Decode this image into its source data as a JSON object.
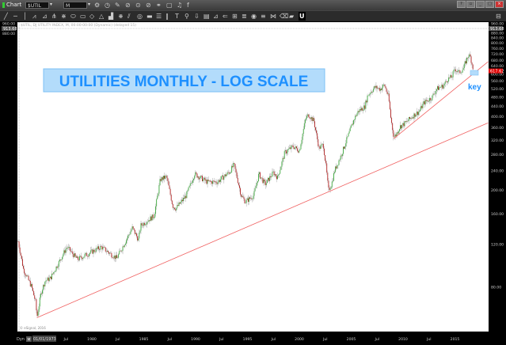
{
  "window": {
    "title": "Chart",
    "symbol": "$UTIL",
    "interval": "M",
    "controls": [
      "?",
      "▫",
      "_",
      "□",
      "×"
    ]
  },
  "toolbar_row1_icons": [
    {
      "name": "settings-icon",
      "glyph": "⚙"
    },
    {
      "name": "clock-icon",
      "glyph": "◷"
    },
    {
      "name": "pencil-icon",
      "glyph": "✎"
    },
    {
      "name": "cycle-icon",
      "glyph": "⊘"
    },
    {
      "name": "target-icon",
      "glyph": "⊙"
    },
    {
      "name": "no-icon",
      "glyph": "⊘"
    },
    {
      "name": "link-icon",
      "glyph": "⚭"
    },
    {
      "name": "square-icon",
      "glyph": "▢"
    },
    {
      "name": "twitter-icon",
      "glyph": "♫"
    },
    {
      "name": "facebook-icon",
      "glyph": "f"
    }
  ],
  "toolbar_row2_icons": [
    {
      "name": "trendline-tool-icon",
      "glyph": "╱"
    },
    {
      "name": "horizontal-line-tool-icon",
      "glyph": "─"
    },
    {
      "name": "vertical-line-tool-icon",
      "glyph": "│"
    },
    {
      "name": "polyline-tool-icon",
      "glyph": "⩘"
    },
    {
      "name": "fibonacci-tool-icon",
      "glyph": "⊿"
    },
    {
      "name": "pitchfork-tool-icon",
      "glyph": "⋔"
    },
    {
      "name": "gann-fan-tool-icon",
      "glyph": "⋇"
    },
    {
      "name": "ellipse-tool-icon",
      "glyph": "⬭"
    },
    {
      "name": "rectangle-tool-icon",
      "glyph": "▭"
    },
    {
      "name": "diamond-tool-icon",
      "glyph": "◇"
    },
    {
      "name": "triangle-tool-icon",
      "glyph": "△"
    },
    {
      "name": "volume-tool-icon",
      "glyph": "▟"
    },
    {
      "name": "ruler-tool-icon",
      "glyph": "⧻"
    },
    {
      "name": "parallel-channel-tool-icon",
      "glyph": "⫽"
    },
    {
      "name": "circle-tool-icon",
      "glyph": "◎"
    },
    {
      "name": "band-tool-icon",
      "glyph": "▬"
    },
    {
      "name": "lines-tool-icon",
      "glyph": "☰"
    },
    {
      "name": "bars-tool-icon",
      "glyph": "‖"
    },
    {
      "name": "text-tool-icon",
      "glyph": "T"
    },
    {
      "name": "marker-tool-icon",
      "glyph": "⚲"
    },
    {
      "name": "arrow-tool-icon",
      "glyph": "⇩"
    },
    {
      "name": "fill-tool-icon",
      "glyph": "▤"
    },
    {
      "name": "chart-tool-icon",
      "glyph": "⊿"
    },
    {
      "name": "back-tool-icon",
      "glyph": "⇐"
    },
    {
      "name": "grid-tool-icon",
      "glyph": "⊞"
    },
    {
      "name": "list-tool-icon",
      "glyph": "≣"
    },
    {
      "name": "eye-tool-icon",
      "glyph": "◉"
    },
    {
      "name": "layers-tool-icon",
      "glyph": "≡"
    },
    {
      "name": "zigzag-tool-icon",
      "glyph": "⋈"
    },
    {
      "name": "eraser-tool-icon",
      "glyph": "⌫"
    },
    {
      "name": "comment-tool-icon",
      "glyph": "▰"
    },
    {
      "name": "u-tool-icon",
      "glyph": "U"
    },
    {
      "name": "panel-toggle-icon",
      "glyph": "⊟"
    }
  ],
  "chart_data": {
    "type": "candlestick",
    "info_line": "$UTIL, DJ UTILITY INDEX, M, 00:00-00:00 (Dynamic) (delayed 15)",
    "annotation_title": "UTILITIES MONTHLY - LOG SCALE",
    "annotation_key": "key",
    "copyright": "© eSignal, 2016",
    "y_scale": "log",
    "ylim": [
      55,
      960
    ],
    "xlim": [
      1972.8,
      2018.2
    ],
    "y_ticks": [
      "960.00",
      "880.00",
      "840.00",
      "800.00",
      "760.00",
      "720.00",
      "680.00",
      "640.00",
      "600.00",
      "560.00",
      "520.00",
      "480.00",
      "440.00",
      "400.00",
      "360.00",
      "320.00",
      "280.00",
      "240.00",
      "200.00",
      "160.00",
      "120.00",
      "80.00"
    ],
    "crosshair_value": "913.68",
    "last_price": "617.62",
    "last_price_color": "#e00000",
    "x_ticks": [
      {
        "label": "Jul",
        "year": 1977.5
      },
      {
        "label": "1980",
        "year": 1980
      },
      {
        "label": "Jul",
        "year": 1982.5
      },
      {
        "label": "1985",
        "year": 1985
      },
      {
        "label": "Jul",
        "year": 1987.5
      },
      {
        "label": "1990",
        "year": 1990
      },
      {
        "label": "Jul",
        "year": 1992.5
      },
      {
        "label": "1995",
        "year": 1995
      },
      {
        "label": "Jul",
        "year": 1997.5
      },
      {
        "label": "2000",
        "year": 2000
      },
      {
        "label": "Jul",
        "year": 2002.5
      },
      {
        "label": "2005",
        "year": 2005
      },
      {
        "label": "Jul",
        "year": 2007.5
      },
      {
        "label": "2010",
        "year": 2010
      },
      {
        "label": "Jul",
        "year": 2012.5
      },
      {
        "label": "2015",
        "year": 2015
      }
    ],
    "x_axis_mode": "Dyn",
    "x_axis_interval_button": "M",
    "x_axis_start_date": "01/01/1973",
    "up_color": "#3aa83a",
    "down_color": "#b02020",
    "trendline_color": "#f06060",
    "annotation_color": "#1e90ff",
    "series": [
      {
        "values": [
          [
            1972.9,
            123
          ],
          [
            1973.4,
            95
          ],
          [
            1974.2,
            80
          ],
          [
            1974.6,
            69
          ],
          [
            1974.7,
            60
          ],
          [
            1975.1,
            76
          ],
          [
            1975.5,
            85
          ],
          [
            1976.0,
            87
          ],
          [
            1977.6,
            117
          ],
          [
            1978.6,
            104
          ],
          [
            1980.9,
            117
          ],
          [
            1982.4,
            105
          ],
          [
            1983.9,
            140
          ],
          [
            1984.5,
            125
          ],
          [
            1984.7,
            143
          ],
          [
            1986.0,
            157
          ],
          [
            1986.6,
            221
          ],
          [
            1987.2,
            227
          ],
          [
            1987.8,
            172
          ],
          [
            1988.1,
            168
          ],
          [
            1989.1,
            190
          ],
          [
            1989.9,
            233
          ],
          [
            1991.1,
            216
          ],
          [
            1992.1,
            216
          ],
          [
            1993.3,
            238
          ],
          [
            1993.7,
            254
          ],
          [
            1994.4,
            190
          ],
          [
            1994.8,
            179
          ],
          [
            1995.6,
            190
          ],
          [
            1996.1,
            233
          ],
          [
            1996.7,
            211
          ],
          [
            1997.5,
            236
          ],
          [
            1997.9,
            225
          ],
          [
            1998.6,
            285
          ],
          [
            1999.4,
            302
          ],
          [
            2000.0,
            290
          ],
          [
            2000.6,
            392
          ],
          [
            2000.9,
            407
          ],
          [
            2001.4,
            383
          ],
          [
            2001.9,
            297
          ],
          [
            2002.3,
            307
          ],
          [
            2002.6,
            245
          ],
          [
            2002.8,
            200
          ],
          [
            2003.1,
            211
          ],
          [
            2003.4,
            240
          ],
          [
            2004.0,
            276
          ],
          [
            2004.7,
            333
          ],
          [
            2005.3,
            392
          ],
          [
            2005.7,
            422
          ],
          [
            2006.3,
            438
          ],
          [
            2006.6,
            490
          ],
          [
            2007.3,
            528
          ],
          [
            2007.8,
            518
          ],
          [
            2008.2,
            540
          ],
          [
            2008.6,
            480
          ],
          [
            2008.8,
            401
          ],
          [
            2009.1,
            330
          ],
          [
            2009.3,
            336
          ],
          [
            2009.7,
            364
          ],
          [
            2010.1,
            373
          ],
          [
            2010.5,
            386
          ],
          [
            2010.9,
            401
          ],
          [
            2011.6,
            422
          ],
          [
            2012.0,
            455
          ],
          [
            2012.8,
            480
          ],
          [
            2013.2,
            518
          ],
          [
            2013.9,
            536
          ],
          [
            2014.3,
            570
          ],
          [
            2014.7,
            581
          ],
          [
            2015.0,
            628
          ],
          [
            2015.4,
            606
          ],
          [
            2015.8,
            628
          ],
          [
            2016.3,
            715
          ],
          [
            2016.5,
            700
          ],
          [
            2016.8,
            617.62
          ]
        ]
      }
    ],
    "trendlines": [
      {
        "from": [
          1974.7,
          60
        ],
        "to": [
          2018.2,
          377
        ]
      },
      {
        "from": [
          2009.1,
          325
        ],
        "to": [
          2018.2,
          671
        ]
      }
    ]
  }
}
